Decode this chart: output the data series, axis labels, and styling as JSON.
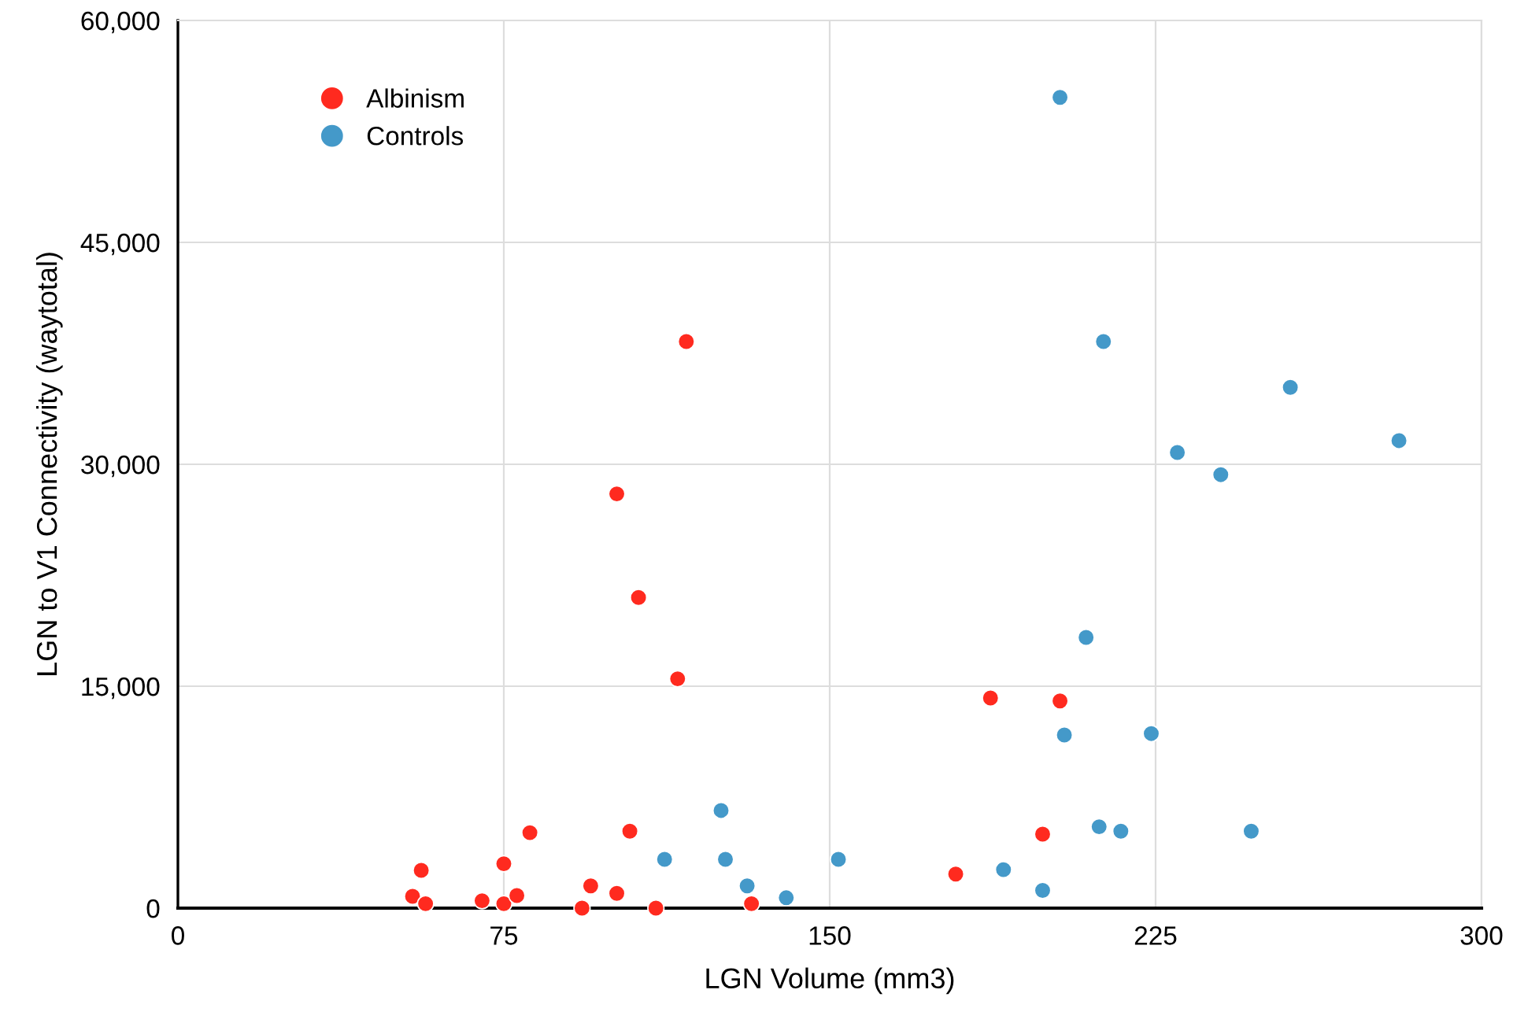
{
  "chart_data": {
    "type": "scatter",
    "xlabel": "LGN Volume (mm3)",
    "ylabel": "LGN to V1 Connectivity (waytotal)",
    "xlim": [
      0,
      300
    ],
    "xticks": [
      0,
      75,
      150,
      225,
      300
    ],
    "ylim": [
      0,
      60000
    ],
    "yticks": [
      {
        "value": 0,
        "label": "0"
      },
      {
        "value": 15000,
        "label": "15,000"
      },
      {
        "value": 30000,
        "label": "30,000"
      },
      {
        "value": 45000,
        "label": "45,000"
      },
      {
        "value": 60000,
        "label": "60,000"
      }
    ],
    "grid": true,
    "legend": "top left",
    "marker": "circle",
    "series": [
      {
        "name": "Albinism",
        "color": "#ff2a1f",
        "x": [
          54,
          56,
          57,
          70,
          75,
          75,
          78,
          81,
          93,
          95,
          101,
          101,
          104,
          106,
          110,
          115,
          117,
          132,
          179,
          187,
          199,
          203
        ],
        "values": [
          800,
          2550,
          300,
          500,
          3000,
          300,
          850,
          5100,
          0,
          1500,
          1000,
          28000,
          5200,
          21000,
          0,
          15500,
          38300,
          300,
          2300,
          14200,
          5000,
          14000
        ]
      },
      {
        "name": "Controls",
        "color": "#4499c9",
        "x": [
          112,
          125,
          126,
          131,
          140,
          152,
          190,
          199,
          203,
          204,
          213,
          209,
          212,
          217,
          224,
          230,
          240,
          247,
          256,
          281
        ],
        "values": [
          3300,
          6600,
          3300,
          1500,
          700,
          3300,
          2600,
          1200,
          54800,
          11700,
          38300,
          18300,
          5500,
          5200,
          11800,
          30800,
          29300,
          5200,
          35200,
          31600
        ]
      }
    ]
  }
}
